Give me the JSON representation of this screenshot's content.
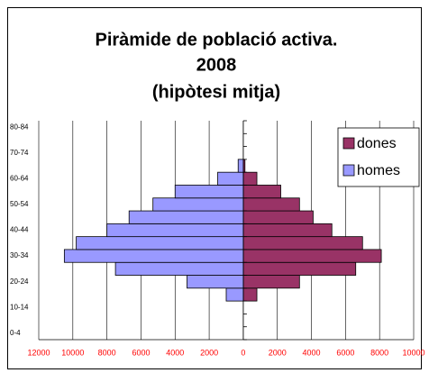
{
  "chart_data": {
    "type": "pyramid",
    "title": [
      "Piràmide de població activa.",
      "2008",
      "(hipòtesi mitja)"
    ],
    "categories": [
      "0-4",
      null,
      "10-14",
      null,
      "20-24",
      null,
      "30-34",
      null,
      "40-44",
      null,
      "50-54",
      null,
      "60-64",
      null,
      "70-74",
      null,
      "80-84"
    ],
    "series": [
      {
        "name": "dones",
        "color": "#993366",
        "values": [
          0,
          0,
          0,
          800,
          3300,
          6600,
          8100,
          7000,
          5200,
          4100,
          3300,
          2200,
          800,
          100,
          0,
          0,
          0
        ]
      },
      {
        "name": "homes",
        "color": "#9999ff",
        "values": [
          0,
          0,
          0,
          -1000,
          -3300,
          -7500,
          -10500,
          -9800,
          -8000,
          -6700,
          -5300,
          -4000,
          -1500,
          -300,
          0,
          0,
          0
        ]
      }
    ],
    "xlim": [
      -12000,
      10000
    ],
    "xticks": [
      {
        "value": -12000,
        "label": "12000"
      },
      {
        "value": -10000,
        "label": "10000"
      },
      {
        "value": -8000,
        "label": "8000"
      },
      {
        "value": -6000,
        "label": "6000"
      },
      {
        "value": -4000,
        "label": "4000"
      },
      {
        "value": -2000,
        "label": "2000"
      },
      0,
      2000,
      4000,
      6000,
      8000,
      10000
    ],
    "grid": true,
    "legend": "right"
  }
}
